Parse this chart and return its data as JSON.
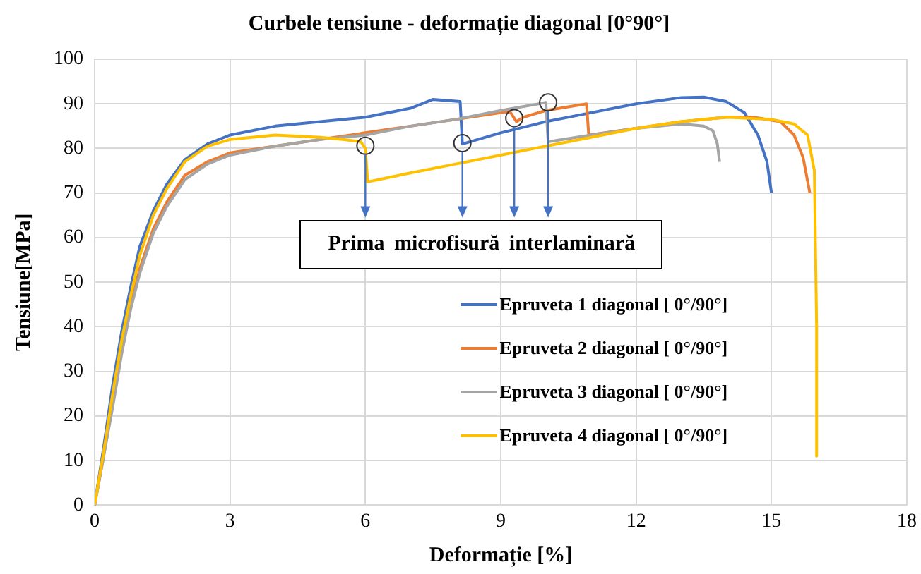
{
  "chart_data": {
    "type": "line",
    "title": "Curbele tensiune - deformație diagonal [0°90°]",
    "xlabel": "Deformație [%]",
    "ylabel": "Tensiune[MPa]",
    "annotations": [
      {
        "text": "Prima microfisură interlaminară",
        "x": 6.0,
        "y": 80.6
      }
    ],
    "xlim": [
      0,
      18
    ],
    "xticks": [
      0,
      3,
      6,
      9,
      12,
      15,
      18
    ],
    "ylim": [
      0,
      100
    ],
    "yticks": [
      0,
      10,
      20,
      30,
      40,
      50,
      60,
      70,
      80,
      90,
      100
    ],
    "grid": true,
    "legend": "bottom right",
    "marker": "none",
    "line_style": "solid",
    "series": [
      {
        "name": "Epruveta 1 diagonal [ 0°/90°]",
        "color": "#4472c4",
        "x": [
          0,
          0.2,
          0.4,
          0.6,
          0.8,
          1.0,
          1.3,
          1.6,
          2,
          2.5,
          3,
          4,
          5,
          6,
          7,
          7.5,
          8.1,
          8.15,
          9,
          10,
          11,
          12,
          13,
          13.5,
          14,
          14.4,
          14.7,
          14.9,
          15
        ],
        "values": [
          0,
          13,
          27,
          39,
          49,
          58,
          66,
          72,
          77.5,
          81,
          83,
          85,
          86,
          87,
          89,
          91,
          90.5,
          81,
          83.5,
          86,
          88,
          90,
          91.4,
          91.5,
          90.5,
          88,
          83,
          77,
          70
        ]
      },
      {
        "name": "Epruveta 2 diagonal [ 0°/90°]",
        "color": "#ed7d31",
        "x": [
          0,
          0.2,
          0.4,
          0.6,
          0.8,
          1.0,
          1.3,
          1.6,
          2,
          2.5,
          3,
          4,
          5,
          6,
          7,
          8,
          9,
          9.2,
          9.35,
          9.5,
          10,
          10.9,
          10.95,
          12,
          13,
          14,
          14.6,
          15.2,
          15.5,
          15.7,
          15.85
        ],
        "values": [
          0,
          11,
          23,
          35,
          45,
          53,
          62,
          68,
          74,
          77,
          79,
          80.5,
          82,
          83.5,
          85,
          86.5,
          88,
          88.3,
          86,
          87,
          88.5,
          90,
          83,
          84.5,
          86,
          87,
          87,
          86,
          83,
          78,
          70
        ]
      },
      {
        "name": "Epruveta 3 diagonal [ 0°/90°]",
        "color": "#a5a5a5",
        "x": [
          0,
          0.2,
          0.4,
          0.6,
          0.8,
          1.0,
          1.3,
          1.6,
          2,
          2.5,
          3,
          4,
          5,
          6,
          7,
          8,
          9,
          10,
          10.05,
          11,
          12,
          13,
          13.5,
          13.7,
          13.8,
          13.85
        ],
        "values": [
          0,
          11,
          22,
          34,
          44,
          52,
          61,
          67,
          73,
          76.5,
          78.5,
          80.5,
          82,
          83,
          85,
          86.5,
          88.5,
          90.3,
          81.5,
          83,
          84.5,
          85.5,
          85,
          84,
          81,
          77
        ]
      },
      {
        "name": "Epruveta 4 diagonal [ 0°/90°]",
        "color": "#ffc000",
        "x": [
          0,
          0.2,
          0.4,
          0.6,
          0.8,
          1.0,
          1.3,
          1.6,
          2,
          2.5,
          3,
          4,
          5,
          5.5,
          5.9,
          6.0,
          6.05,
          7,
          8,
          9,
          10,
          11,
          12,
          13,
          14,
          15,
          15.5,
          15.8,
          15.95,
          16,
          16
        ],
        "values": [
          0,
          12,
          25,
          37,
          47,
          56,
          65,
          71,
          77,
          80.5,
          82,
          83,
          82.5,
          82,
          81.5,
          80,
          72.5,
          74.5,
          76.5,
          78.5,
          80.5,
          82.5,
          84.5,
          86,
          87,
          86.5,
          85.5,
          83,
          75,
          40,
          11
        ]
      }
    ]
  }
}
